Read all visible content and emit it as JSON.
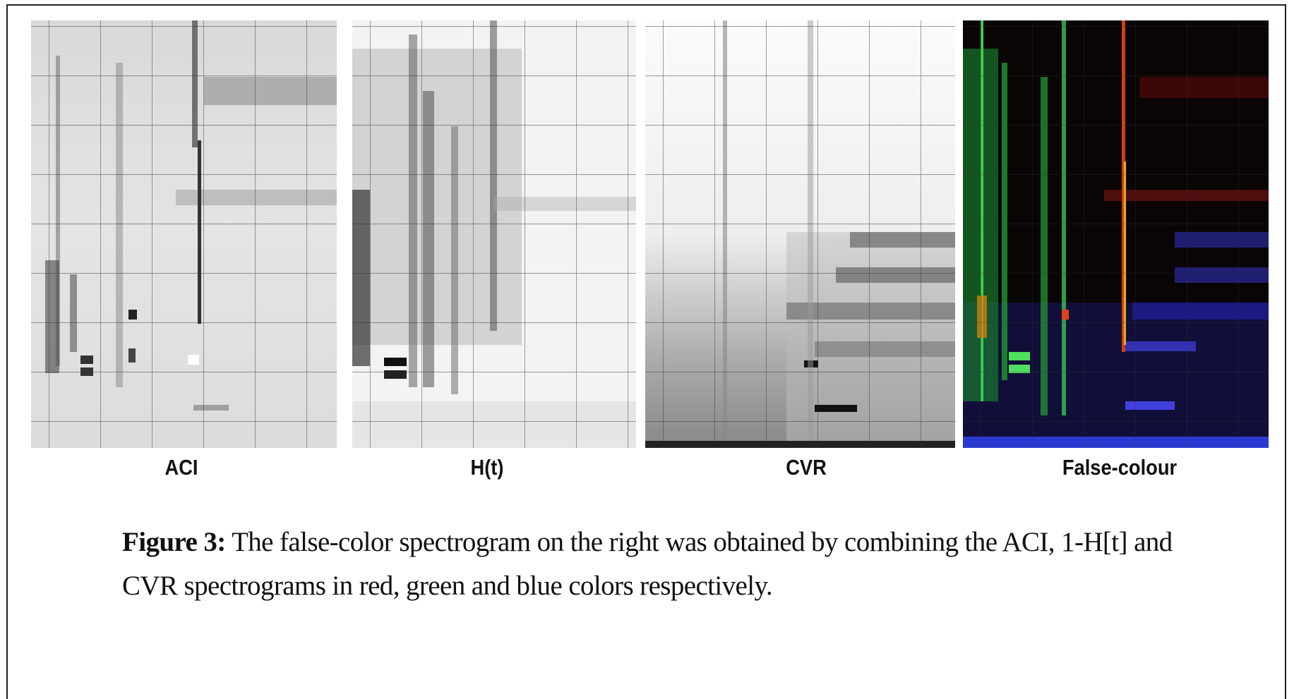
{
  "figure": {
    "panels": [
      {
        "label": "ACI"
      },
      {
        "label": "H(t)"
      },
      {
        "label": "CVR"
      },
      {
        "label": "False-colour"
      }
    ],
    "caption": {
      "number": "Figure 3:",
      "text": "The false-color spectrogram on the right was obtained by combining the ACI, 1-H[t] and CVR spectrograms in red, green and blue colors respectively."
    }
  }
}
